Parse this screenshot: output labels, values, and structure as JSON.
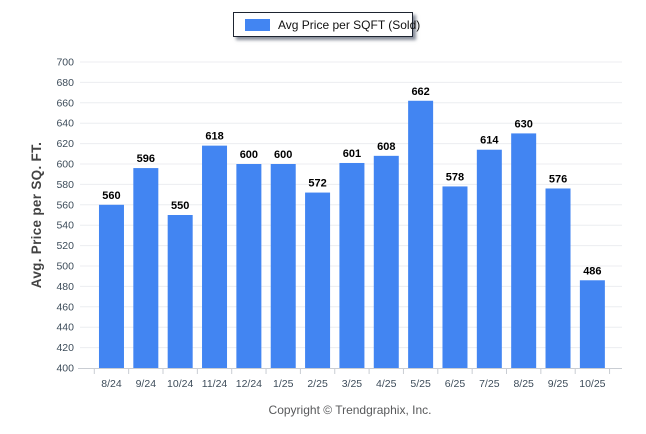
{
  "legend": {
    "label": "Avg Price per SQFT (Sold)",
    "swatch_color": "#4285f2"
  },
  "footer": {
    "text": "Copyright © Trendgraphix, Inc."
  },
  "chart_data": {
    "type": "bar",
    "title": "",
    "categories": [
      "8/24",
      "9/24",
      "10/24",
      "11/24",
      "12/24",
      "1/25",
      "2/25",
      "3/25",
      "4/25",
      "5/25",
      "6/25",
      "7/25",
      "8/25",
      "9/25",
      "10/25"
    ],
    "values": [
      560,
      596,
      550,
      618,
      600,
      600,
      572,
      601,
      608,
      662,
      578,
      614,
      630,
      576,
      486
    ],
    "series_name": "Avg Price per SQFT (Sold)",
    "xlabel": "",
    "ylabel": "Avg. Price per SQ. FT.",
    "ylim": [
      400,
      700
    ],
    "ytick_step": 20,
    "grid": "horizontal",
    "legend_position": "top-center",
    "value_labels": true,
    "colors": {
      "bar": "#4285f2",
      "grid": "#ecedf0",
      "axis": "#c9cdd3",
      "tick_label": "#3d4c5a",
      "value_label": "#000000"
    }
  }
}
